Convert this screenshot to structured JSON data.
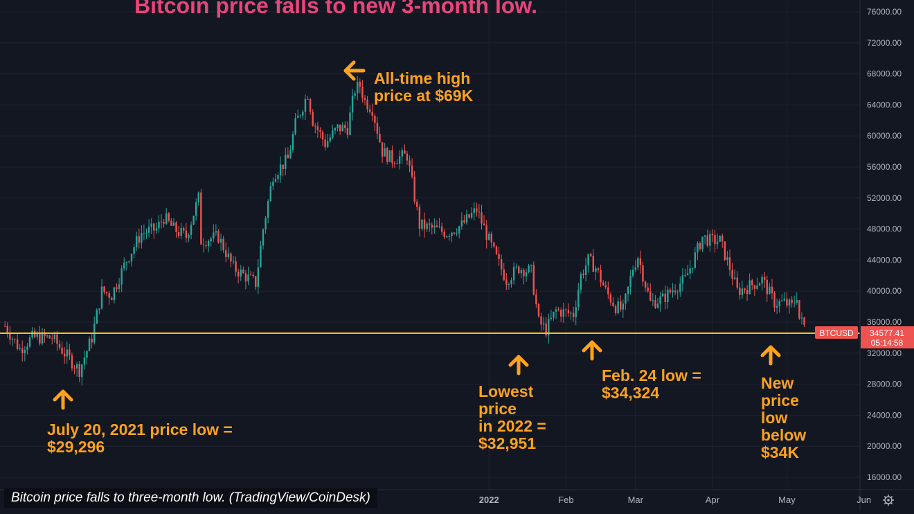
{
  "chart_data": {
    "type": "candlestick",
    "title": "Bitcoin price falls to new 3-month low.",
    "caption": "Bitcoin price falls to three-month low. (TradingView/CoinDesk)",
    "symbol": "BTCUSD",
    "last_price": "34577.41",
    "countdown": "05:14:58",
    "ylim": [
      14000,
      78000
    ],
    "y_ticks": [
      "76000.00",
      "72000.00",
      "68000.00",
      "64000.00",
      "60000.00",
      "56000.00",
      "52000.00",
      "48000.00",
      "44000.00",
      "40000.00",
      "36000.00",
      "32000.00",
      "28000.00",
      "24000.00",
      "20000.00",
      "16000.00"
    ],
    "x_ticks": [
      "2022",
      "Feb",
      "Mar",
      "Apr",
      "May",
      "Jun"
    ],
    "reference_line": 34577,
    "colors": {
      "up": "#26a69a",
      "down": "#ef5350",
      "reference": "#f5c518",
      "annotation": "#ffa21a",
      "title": "#e8457a",
      "background": "#131722"
    },
    "price_path": [
      [
        "2021-06-20",
        35500
      ],
      [
        "2021-06-26",
        32500
      ],
      [
        "2021-07-01",
        34000
      ],
      [
        "2021-07-09",
        34000
      ],
      [
        "2021-07-14",
        32000
      ],
      [
        "2021-07-20",
        29800
      ],
      [
        "2021-07-25",
        34000
      ],
      [
        "2021-07-29",
        40000
      ],
      [
        "2021-08-02",
        39500
      ],
      [
        "2021-08-08",
        44000
      ],
      [
        "2021-08-14",
        47500
      ],
      [
        "2021-08-20",
        48000
      ],
      [
        "2021-08-23",
        49500
      ],
      [
        "2021-08-27",
        48000
      ],
      [
        "2021-09-01",
        47000
      ],
      [
        "2021-09-06",
        52000
      ],
      [
        "2021-09-07",
        46500
      ],
      [
        "2021-09-14",
        47000
      ],
      [
        "2021-09-20",
        43000
      ],
      [
        "2021-09-29",
        41000
      ],
      [
        "2021-10-02",
        48000
      ],
      [
        "2021-10-06",
        55000
      ],
      [
        "2021-10-12",
        57000
      ],
      [
        "2021-10-15",
        61500
      ],
      [
        "2021-10-20",
        65500
      ],
      [
        "2021-10-22",
        62000
      ],
      [
        "2021-10-27",
        59000
      ],
      [
        "2021-11-01",
        61000
      ],
      [
        "2021-11-05",
        61000
      ],
      [
        "2021-11-08",
        66000
      ],
      [
        "2021-11-10",
        66500
      ],
      [
        "2021-11-12",
        64500
      ],
      [
        "2021-11-15",
        63500
      ],
      [
        "2021-11-19",
        58000
      ],
      [
        "2021-11-23",
        57000
      ],
      [
        "2021-11-29",
        57500
      ],
      [
        "2021-12-04",
        48500
      ],
      [
        "2021-12-10",
        48000
      ],
      [
        "2021-12-15",
        47500
      ],
      [
        "2021-12-21",
        48500
      ],
      [
        "2021-12-27",
        50500
      ],
      [
        "2022-01-01",
        46500
      ],
      [
        "2022-01-05",
        43500
      ],
      [
        "2022-01-08",
        41500
      ],
      [
        "2022-01-13",
        43000
      ],
      [
        "2022-01-18",
        42500
      ],
      [
        "2022-01-21",
        36000
      ],
      [
        "2022-01-24",
        35000
      ],
      [
        "2022-01-28",
        37500
      ],
      [
        "2022-02-04",
        37000
      ],
      [
        "2022-02-07",
        42000
      ],
      [
        "2022-02-10",
        44000
      ],
      [
        "2022-02-13",
        43000
      ],
      [
        "2022-02-17",
        40000
      ],
      [
        "2022-02-21",
        38000
      ],
      [
        "2022-02-24",
        37500
      ],
      [
        "2022-02-28",
        43000
      ],
      [
        "2022-03-02",
        44500
      ],
      [
        "2022-03-07",
        38500
      ],
      [
        "2022-03-12",
        39000
      ],
      [
        "2022-03-17",
        40500
      ],
      [
        "2022-03-21",
        41500
      ],
      [
        "2022-03-25",
        44500
      ],
      [
        "2022-03-28",
        47000
      ],
      [
        "2022-03-31",
        46500
      ],
      [
        "2022-04-04",
        46500
      ],
      [
        "2022-04-08",
        43000
      ],
      [
        "2022-04-11",
        40000
      ],
      [
        "2022-04-15",
        40500
      ],
      [
        "2022-04-21",
        41500
      ],
      [
        "2022-04-26",
        38500
      ],
      [
        "2022-04-30",
        38500
      ],
      [
        "2022-05-03",
        38000
      ],
      [
        "2022-05-05",
        39500
      ],
      [
        "2022-05-06",
        36500
      ],
      [
        "2022-05-08",
        35500
      ],
      [
        "2022-05-09",
        34577
      ]
    ],
    "annotations": [
      {
        "lines": [
          "All-time high",
          "price at $69K"
        ],
        "date": "2021-11-10",
        "price": 69000,
        "arrow": "left"
      },
      {
        "lines": [
          "July 20, 2021 price low =",
          "$29,296"
        ],
        "date": "2021-07-20",
        "price": 29296,
        "arrow": "up"
      },
      {
        "lines": [
          "Lowest",
          "price",
          "in 2022 =",
          "$32,951"
        ],
        "date": "2022-01-24",
        "price": 32951,
        "arrow": "up"
      },
      {
        "lines": [
          "Feb. 24 low =",
          "$34,324"
        ],
        "date": "2022-02-24",
        "price": 34324,
        "arrow": "up"
      },
      {
        "lines": [
          "New",
          "price",
          "low",
          "below",
          "$34K"
        ],
        "date": "2022-05-09",
        "price": 34000,
        "arrow": "up"
      }
    ]
  }
}
